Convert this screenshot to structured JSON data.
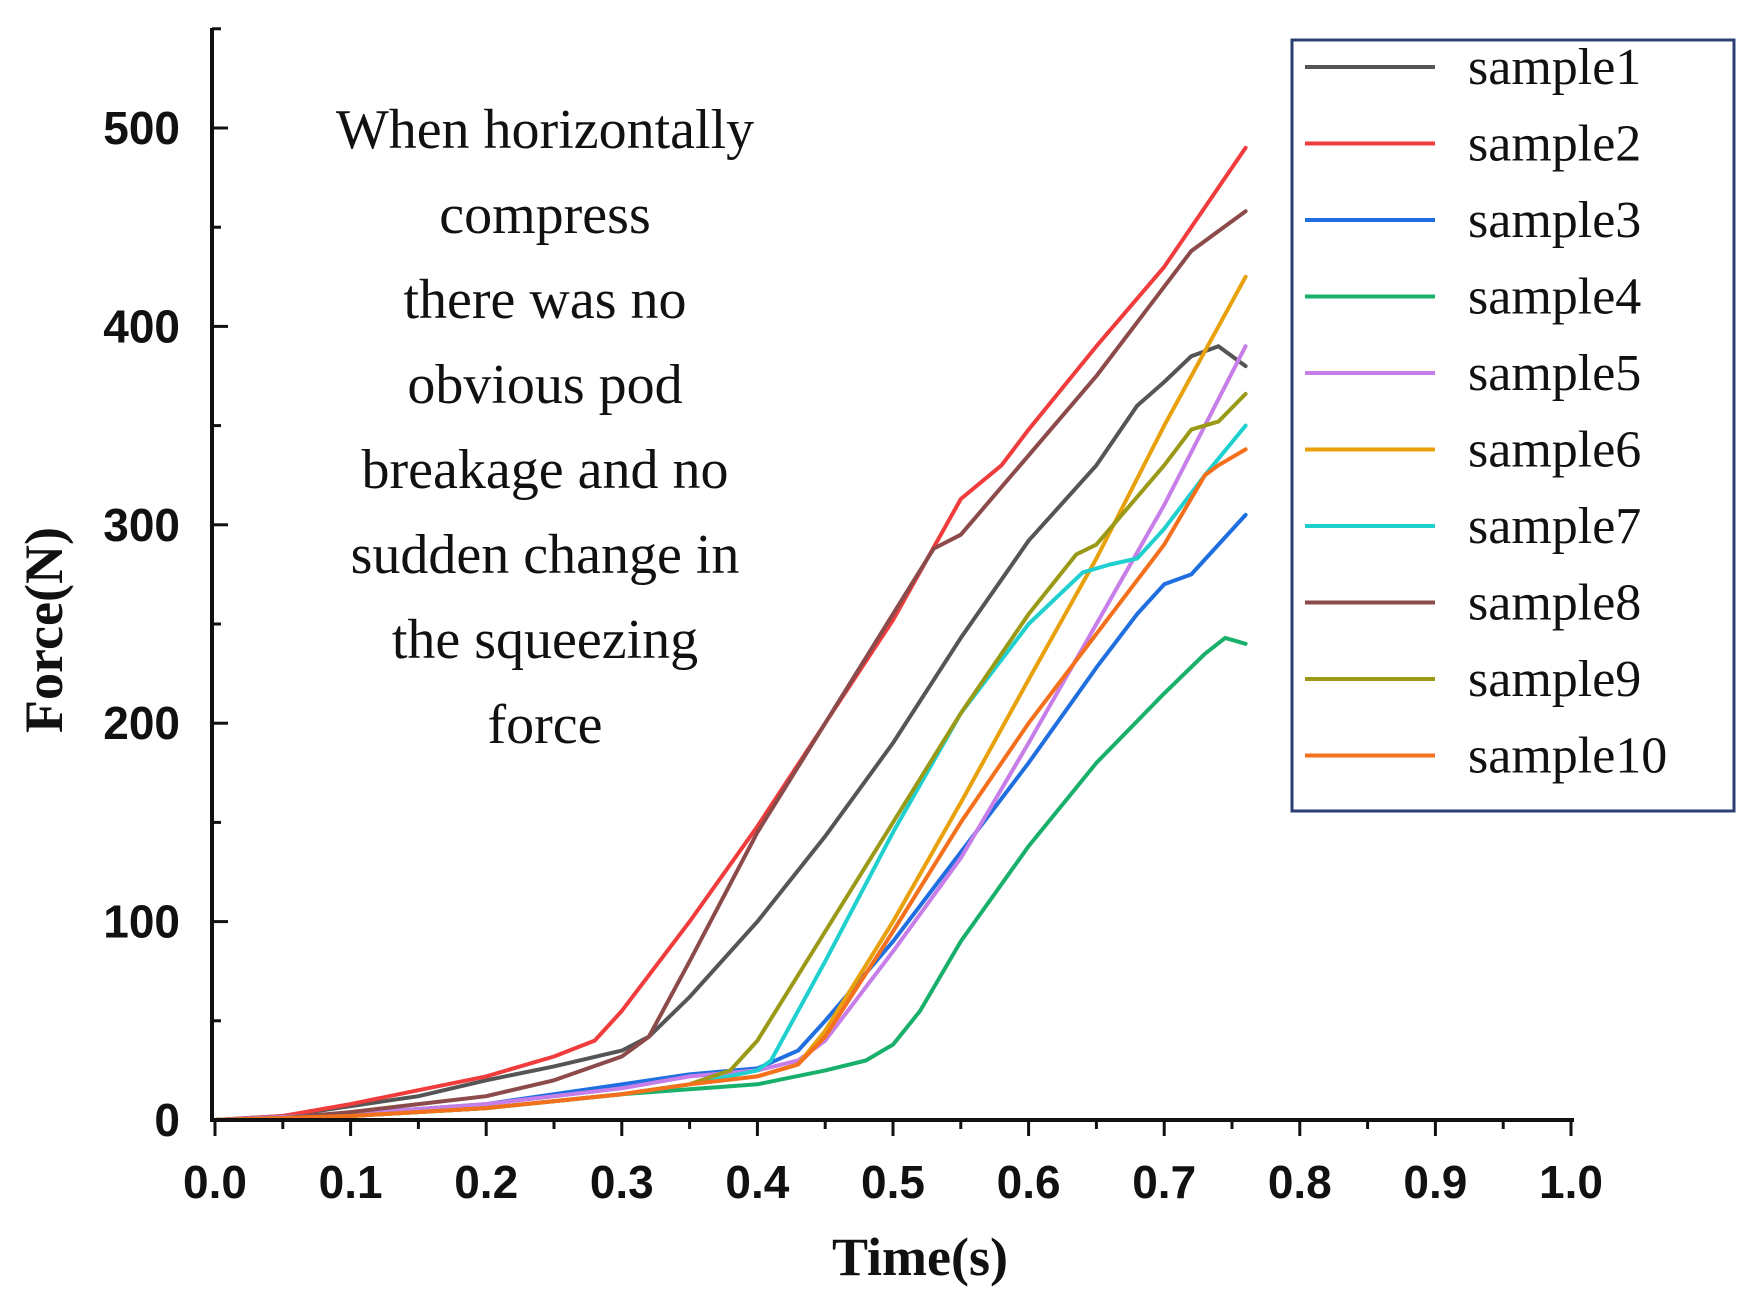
{
  "chart_data": {
    "type": "line",
    "title": "",
    "xlabel": "Time(s)",
    "ylabel": "Force(N)",
    "xlim": [
      0.0,
      1.0
    ],
    "ylim": [
      0,
      550
    ],
    "xticks": [
      0.0,
      0.1,
      0.2,
      0.3,
      0.4,
      0.5,
      0.6,
      0.7,
      0.8,
      0.9,
      1.0
    ],
    "xtick_labels": [
      "0.0",
      "0.1",
      "0.2",
      "0.3",
      "0.4",
      "0.5",
      "0.6",
      "0.7",
      "0.8",
      "0.9",
      "1.0"
    ],
    "yticks": [
      0,
      100,
      200,
      300,
      400,
      500
    ],
    "ytick_labels": [
      "0",
      "100",
      "200",
      "300",
      "400",
      "500"
    ],
    "grid": false,
    "legend_position": "top-right",
    "annotation": [
      "When horizontally",
      "compress",
      "there was no",
      "obvious pod",
      "breakage and no",
      "sudden change in",
      "the squeezing",
      "force"
    ],
    "series": [
      {
        "name": "sample1",
        "color": "#555555",
        "x": [
          0.0,
          0.05,
          0.1,
          0.15,
          0.2,
          0.25,
          0.3,
          0.32,
          0.35,
          0.4,
          0.45,
          0.5,
          0.55,
          0.6,
          0.65,
          0.68,
          0.7,
          0.72,
          0.74,
          0.76
        ],
        "y": [
          0,
          2,
          7,
          12,
          20,
          27,
          35,
          42,
          62,
          100,
          143,
          190,
          243,
          292,
          330,
          360,
          372,
          385,
          390,
          380
        ]
      },
      {
        "name": "sample2",
        "color": "#f03c3c",
        "x": [
          0.0,
          0.05,
          0.1,
          0.15,
          0.2,
          0.25,
          0.28,
          0.3,
          0.35,
          0.4,
          0.45,
          0.5,
          0.55,
          0.58,
          0.6,
          0.65,
          0.7,
          0.76
        ],
        "y": [
          0,
          2,
          8,
          15,
          22,
          32,
          40,
          55,
          100,
          148,
          200,
          252,
          313,
          330,
          348,
          390,
          430,
          490
        ]
      },
      {
        "name": "sample3",
        "color": "#1f6fe0",
        "x": [
          0.0,
          0.1,
          0.2,
          0.3,
          0.35,
          0.4,
          0.43,
          0.45,
          0.5,
          0.55,
          0.6,
          0.65,
          0.68,
          0.7,
          0.72,
          0.76
        ],
        "y": [
          0,
          3,
          8,
          18,
          23,
          26,
          35,
          50,
          90,
          135,
          180,
          228,
          255,
          270,
          275,
          305
        ]
      },
      {
        "name": "sample4",
        "color": "#19b06b",
        "x": [
          0.0,
          0.1,
          0.2,
          0.3,
          0.4,
          0.45,
          0.48,
          0.5,
          0.52,
          0.55,
          0.6,
          0.65,
          0.7,
          0.73,
          0.745,
          0.76
        ],
        "y": [
          0,
          2,
          6,
          13,
          18,
          25,
          30,
          38,
          55,
          90,
          138,
          180,
          215,
          235,
          243,
          240
        ]
      },
      {
        "name": "sample5",
        "color": "#c77ee8",
        "x": [
          0.0,
          0.1,
          0.2,
          0.3,
          0.35,
          0.4,
          0.43,
          0.45,
          0.5,
          0.55,
          0.6,
          0.65,
          0.7,
          0.76
        ],
        "y": [
          0,
          3,
          8,
          16,
          22,
          25,
          30,
          40,
          85,
          132,
          190,
          250,
          310,
          390
        ]
      },
      {
        "name": "sample6",
        "color": "#e8a10b",
        "x": [
          0.0,
          0.1,
          0.2,
          0.3,
          0.35,
          0.4,
          0.43,
          0.45,
          0.5,
          0.55,
          0.6,
          0.65,
          0.7,
          0.76
        ],
        "y": [
          0,
          2,
          6,
          13,
          18,
          22,
          28,
          45,
          100,
          160,
          222,
          283,
          350,
          425
        ]
      },
      {
        "name": "sample7",
        "color": "#1fd0cf",
        "x": [
          0.0,
          0.1,
          0.2,
          0.3,
          0.35,
          0.4,
          0.41,
          0.45,
          0.5,
          0.55,
          0.6,
          0.64,
          0.66,
          0.68,
          0.7,
          0.73,
          0.76
        ],
        "y": [
          0,
          2,
          6,
          13,
          18,
          25,
          30,
          80,
          145,
          205,
          250,
          276,
          280,
          283,
          298,
          325,
          350
        ]
      },
      {
        "name": "sample8",
        "color": "#8c4a4a",
        "x": [
          0.0,
          0.05,
          0.1,
          0.15,
          0.2,
          0.25,
          0.3,
          0.32,
          0.35,
          0.4,
          0.45,
          0.5,
          0.53,
          0.55,
          0.6,
          0.65,
          0.7,
          0.72,
          0.76
        ],
        "y": [
          0,
          1,
          4,
          8,
          12,
          20,
          32,
          42,
          80,
          145,
          200,
          255,
          288,
          295,
          335,
          375,
          420,
          438,
          458
        ]
      },
      {
        "name": "sample9",
        "color": "#9a9a18",
        "x": [
          0.0,
          0.1,
          0.2,
          0.3,
          0.35,
          0.38,
          0.4,
          0.45,
          0.5,
          0.55,
          0.6,
          0.635,
          0.65,
          0.7,
          0.72,
          0.74,
          0.76
        ],
        "y": [
          0,
          2,
          6,
          13,
          18,
          25,
          40,
          95,
          150,
          205,
          255,
          285,
          290,
          330,
          348,
          352,
          366
        ]
      },
      {
        "name": "sample10",
        "color": "#f5701c",
        "x": [
          0.0,
          0.1,
          0.2,
          0.3,
          0.35,
          0.4,
          0.43,
          0.45,
          0.5,
          0.55,
          0.6,
          0.65,
          0.7,
          0.73,
          0.74,
          0.76
        ],
        "y": [
          0,
          2,
          6,
          13,
          18,
          22,
          28,
          42,
          95,
          150,
          200,
          245,
          290,
          325,
          330,
          338
        ]
      }
    ]
  }
}
